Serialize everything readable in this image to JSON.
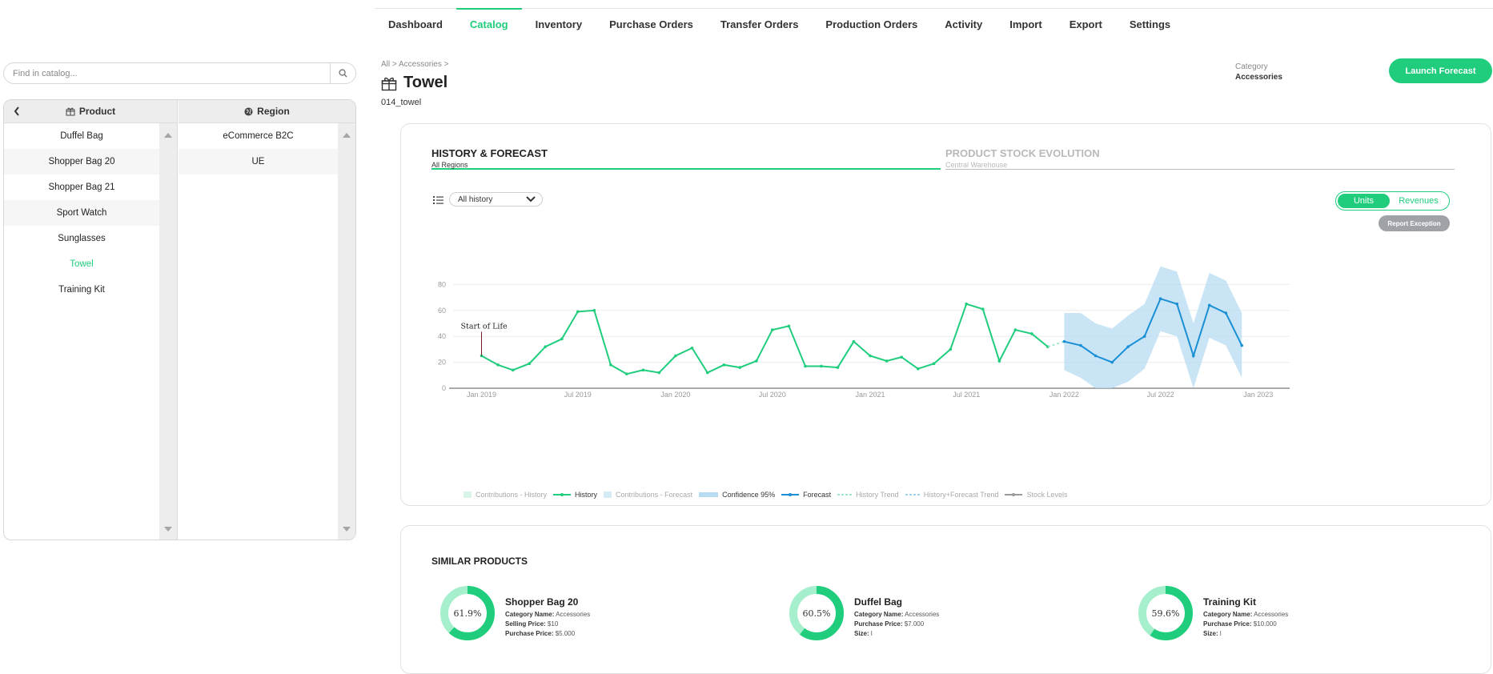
{
  "nav": {
    "tabs": [
      {
        "label": "Dashboard"
      },
      {
        "label": "Catalog",
        "active": true
      },
      {
        "label": "Inventory"
      },
      {
        "label": "Purchase Orders"
      },
      {
        "label": "Transfer Orders"
      },
      {
        "label": "Production Orders"
      },
      {
        "label": "Activity"
      },
      {
        "label": "Import"
      },
      {
        "label": "Export"
      },
      {
        "label": "Settings"
      }
    ]
  },
  "search": {
    "placeholder": "Find in catalog..."
  },
  "product_panel": {
    "header": "Product",
    "items": [
      "Duffel Bag",
      "Shopper Bag 20",
      "Shopper Bag 21",
      "Sport Watch",
      "Sunglasses",
      "Towel",
      "Training Kit"
    ],
    "selected": "Towel"
  },
  "region_panel": {
    "header": "Region",
    "items": [
      "eCommerce B2C",
      "UE"
    ]
  },
  "header": {
    "breadcrumb": "All > Accessories >",
    "title": "Towel",
    "sku": "014_towel",
    "category_label": "Category",
    "category_value": "Accessories",
    "launch_button": "Launch Forecast"
  },
  "forecast_card": {
    "tabs": [
      {
        "label": "HISTORY & FORECAST",
        "sub": "All Regions",
        "active": true
      },
      {
        "label": "PRODUCT STOCK EVOLUTION",
        "sub": "Central Warehouse",
        "active": false
      }
    ],
    "history_select": "All history",
    "toggle": {
      "on": "Units",
      "off": "Revenues"
    },
    "report_button": "Report Exception"
  },
  "chart_data": {
    "type": "line",
    "y_ticks": [
      0,
      20,
      40,
      60,
      80
    ],
    "ylim": [
      0,
      100
    ],
    "x_ticks": [
      "Jan 2019",
      "Jul 2019",
      "Jan 2020",
      "Jul 2020",
      "Jan 2021",
      "Jul 2021",
      "Jan 2022",
      "Jul 2022",
      "Jan 2023"
    ],
    "annotation": "Start of Life",
    "history": {
      "name": "History",
      "color": "#1fcd7d",
      "x": [
        "2019-01",
        "2019-02",
        "2019-03",
        "2019-04",
        "2019-05",
        "2019-06",
        "2019-07",
        "2019-08",
        "2019-09",
        "2019-10",
        "2019-11",
        "2019-12",
        "2020-01",
        "2020-02",
        "2020-03",
        "2020-04",
        "2020-05",
        "2020-06",
        "2020-07",
        "2020-08",
        "2020-09",
        "2020-10",
        "2020-11",
        "2020-12",
        "2021-01",
        "2021-02",
        "2021-03",
        "2021-04",
        "2021-05",
        "2021-06",
        "2021-07",
        "2021-08",
        "2021-09",
        "2021-10",
        "2021-11",
        "2021-12"
      ],
      "y": [
        25,
        18,
        14,
        19,
        32,
        38,
        59,
        60,
        18,
        11,
        14,
        12,
        25,
        31,
        12,
        18,
        16,
        21,
        45,
        48,
        17,
        17,
        16,
        36,
        25,
        21,
        24,
        15,
        19,
        30,
        65,
        61,
        21,
        45,
        42,
        32
      ]
    },
    "forecast": {
      "name": "Forecast",
      "color": "#1a8fd6",
      "x": [
        "2022-01",
        "2022-02",
        "2022-03",
        "2022-04",
        "2022-05",
        "2022-06",
        "2022-07",
        "2022-08",
        "2022-09",
        "2022-10",
        "2022-11",
        "2022-12"
      ],
      "y": [
        36,
        33,
        25,
        20,
        32,
        40,
        69,
        65,
        25,
        64,
        58,
        33
      ],
      "lower": [
        14,
        8,
        0,
        0,
        5,
        15,
        44,
        40,
        0,
        39,
        33,
        8
      ],
      "upper": [
        58,
        58,
        50,
        46,
        56,
        65,
        94,
        90,
        50,
        89,
        83,
        58
      ]
    },
    "legend": [
      {
        "label": "Contributions - History",
        "color": "#d8f5e8",
        "kind": "box",
        "active": false
      },
      {
        "label": "History",
        "color": "#1fcd7d",
        "kind": "line",
        "active": true
      },
      {
        "label": "Contributions - Forecast",
        "color": "#d5ecf7",
        "kind": "box",
        "active": false
      },
      {
        "label": "Confidence 95%",
        "color": "#b7dcf2",
        "kind": "band",
        "active": true
      },
      {
        "label": "Forecast",
        "color": "#1a8fd6",
        "kind": "line",
        "active": true
      },
      {
        "label": "History Trend",
        "color": "#7fe0b5",
        "kind": "dash",
        "active": false
      },
      {
        "label": "History+Forecast Trend",
        "color": "#7fc7ea",
        "kind": "dash",
        "active": false
      },
      {
        "label": "Stock Levels",
        "color": "#9a9a9a",
        "kind": "line",
        "active": false
      }
    ]
  },
  "similar": {
    "title": "SIMILAR PRODUCTS",
    "items": [
      {
        "name": "Shopper Bag 20",
        "pct_label": "61.9%",
        "pct": 61.9,
        "lines": [
          {
            "k": "Category Name:",
            "v": "Accessories"
          },
          {
            "k": "Selling Price:",
            "v": "$10"
          },
          {
            "k": "Purchase Price:",
            "v": "$5.000"
          }
        ]
      },
      {
        "name": "Duffel Bag",
        "pct_label": "60.5%",
        "pct": 60.5,
        "lines": [
          {
            "k": "Category Name:",
            "v": "Accessories"
          },
          {
            "k": "Purchase Price:",
            "v": "$7.000"
          },
          {
            "k": "Size:",
            "v": "l"
          }
        ]
      },
      {
        "name": "Training Kit",
        "pct_label": "59.6%",
        "pct": 59.6,
        "lines": [
          {
            "k": "Category Name:",
            "v": "Accessories"
          },
          {
            "k": "Purchase Price:",
            "v": "$10.000"
          },
          {
            "k": "Size:",
            "v": "l"
          }
        ]
      }
    ]
  },
  "colors": {
    "accent": "#1fcd7d",
    "forecast": "#1a8fd6",
    "confidence": "#b7dcf2",
    "donut_light": "#a5efcd"
  }
}
